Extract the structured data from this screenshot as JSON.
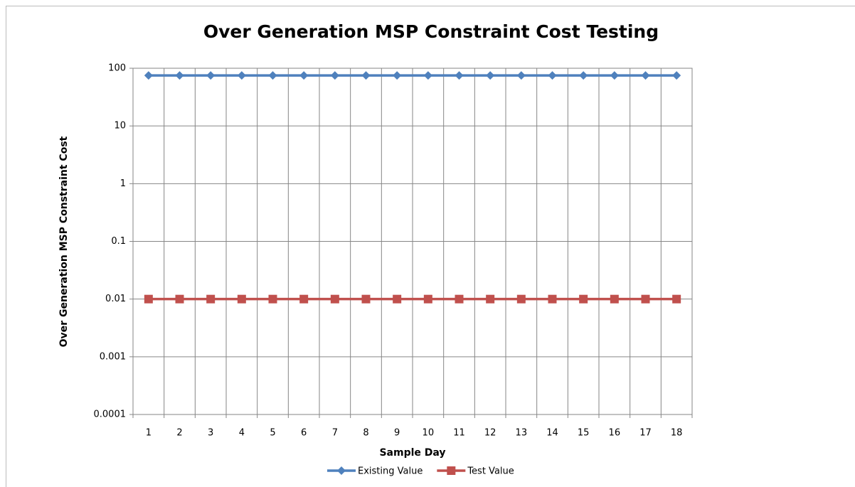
{
  "chart_data": {
    "type": "line",
    "title": "Over Generation  MSP Constraint Cost Testing",
    "x_label": "Sample Day",
    "y_label": "Over Generation MSP Constraint Cost",
    "categories": [
      "1",
      "2",
      "3",
      "4",
      "5",
      "6",
      "7",
      "8",
      "9",
      "10",
      "11",
      "12",
      "13",
      "14",
      "15",
      "16",
      "17",
      "18"
    ],
    "series": [
      {
        "name": "Existing Value",
        "color": "#4f81bd",
        "marker": "diamond",
        "values": [
          75,
          75,
          75,
          75,
          75,
          75,
          75,
          75,
          75,
          75,
          75,
          75,
          75,
          75,
          75,
          75,
          75,
          75
        ]
      },
      {
        "name": "Test Value",
        "color": "#c0504d",
        "marker": "square",
        "values": [
          0.01,
          0.01,
          0.01,
          0.01,
          0.01,
          0.01,
          0.01,
          0.01,
          0.01,
          0.01,
          0.01,
          0.01,
          0.01,
          0.01,
          0.01,
          0.01,
          0.01,
          0.01
        ]
      }
    ],
    "ylim": [
      0.0001,
      100
    ],
    "yticks": [
      0.0001,
      0.001,
      0.01,
      0.1,
      1,
      10,
      100
    ],
    "log_y": true,
    "grid": true,
    "legend": "bottom"
  }
}
